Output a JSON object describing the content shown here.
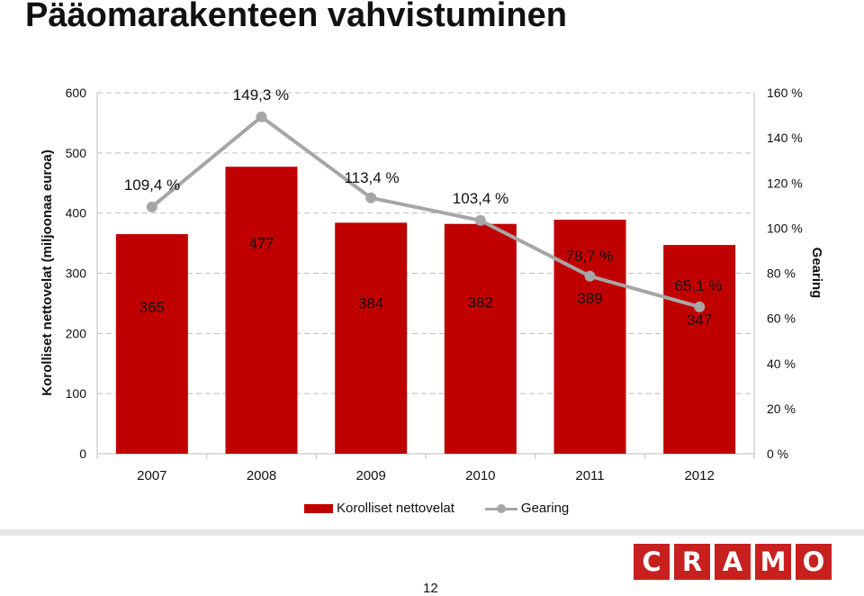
{
  "title": "Pääomarakenteen vahvistuminen",
  "page_number": "12",
  "logo": {
    "letters": [
      "C",
      "R",
      "A",
      "M",
      "O"
    ],
    "color": "#c8201f"
  },
  "colors": {
    "bar": "#c00000",
    "line": "#a6a6a6",
    "grid": "#bfbfbf"
  },
  "chart_data": {
    "type": "bar",
    "categories": [
      "2007",
      "2008",
      "2009",
      "2010",
      "2011",
      "2012"
    ],
    "series": [
      {
        "name": "Korolliset nettovelat",
        "type": "bar",
        "axis": "left",
        "values": [
          365,
          477,
          384,
          382,
          389,
          347
        ],
        "labels": [
          "365",
          "477",
          "384",
          "382",
          "389",
          "347"
        ]
      },
      {
        "name": "Gearing",
        "type": "line",
        "axis": "right",
        "values": [
          109.4,
          149.3,
          113.4,
          103.4,
          78.7,
          65.1
        ],
        "labels": [
          "109,4 %",
          "149,3 %",
          "113,4 %",
          "103,4 %",
          "78,7 %",
          "65,1 %"
        ]
      }
    ],
    "ylabel": "Korolliset nettovelat (miljoonaa euroa)",
    "y2label": "Gearing",
    "ylim": [
      0,
      600
    ],
    "y2lim": [
      0,
      160
    ],
    "yticks": [
      "0",
      "100",
      "200",
      "300",
      "400",
      "500",
      "600"
    ],
    "y2ticks": [
      "0 %",
      "20 %",
      "40 %",
      "60 %",
      "80 %",
      "100 %",
      "120 %",
      "140 %",
      "160 %"
    ],
    "grid": true,
    "legend": "bottom"
  }
}
